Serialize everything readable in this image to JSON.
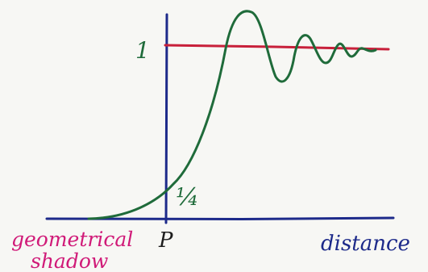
{
  "labels": {
    "one": "1",
    "quarter": "¼",
    "point": "P",
    "shadow_line1": "geometrical",
    "shadow_line2": "shadow",
    "distance": "distance"
  },
  "colors": {
    "paper": "#f7f7f4",
    "axis": "#1d2a8a",
    "curve": "#1f6b3a",
    "reference_line": "#c8203a",
    "one_label": "#1f6b3a",
    "quarter_label": "#1f6b3a",
    "point_label": "#1d1d1d",
    "shadow_label": "#d01a78",
    "distance_label": "#1d2a8a"
  }
}
